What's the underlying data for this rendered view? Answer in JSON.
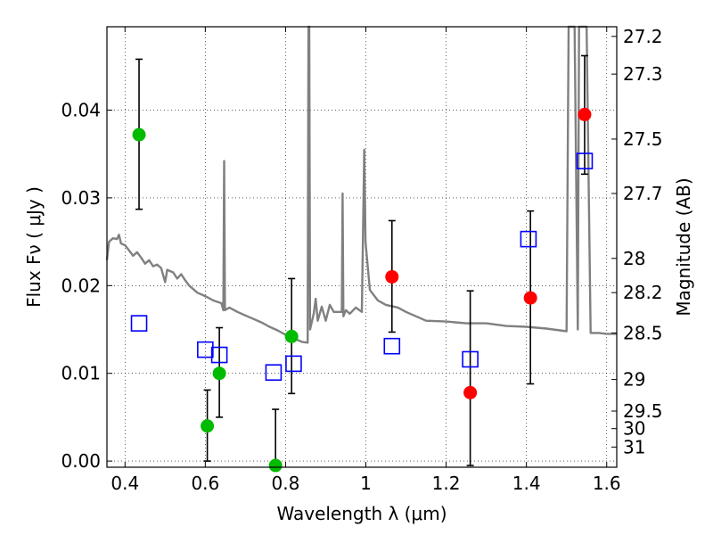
{
  "chart_data": {
    "type": "scatter",
    "title": "",
    "xlabel": "Wavelength  λ (μm)",
    "ylabel": "Flux  Fν  ( μJy )",
    "y2label": "Magnitude (AB)",
    "xlim": [
      0.355,
      1.625
    ],
    "ylim": [
      -0.0007,
      0.0495
    ],
    "grid": true,
    "grid_style": "dotted",
    "xticks": [
      0.4,
      0.6,
      0.8,
      1.0,
      1.2,
      1.4,
      1.6
    ],
    "xtick_labels": [
      "0.4",
      "0.6",
      "0.8",
      "1",
      "1.2",
      "1.4",
      "1.6"
    ],
    "yticks": [
      0.0,
      0.01,
      0.02,
      0.03,
      0.04
    ],
    "ytick_labels": [
      "0.00",
      "0.01",
      "0.02",
      "0.03",
      "0.04"
    ],
    "y2ticks": [
      {
        "label": "27.2",
        "flux": 0.0484
      },
      {
        "label": "27.3",
        "flux": 0.0441
      },
      {
        "label": "27.5",
        "flux": 0.0367
      },
      {
        "label": "27.7",
        "flux": 0.0305
      },
      {
        "label": "28",
        "flux": 0.0231
      },
      {
        "label": "28.2",
        "flux": 0.0192
      },
      {
        "label": "28.5",
        "flux": 0.0146
      },
      {
        "label": "29",
        "flux": 0.0093
      },
      {
        "label": "29.5",
        "flux": 0.0057
      },
      {
        "label": "30",
        "flux": 0.0037
      },
      {
        "label": "31",
        "flux": 0.0016
      }
    ],
    "colors": {
      "model": "#808080",
      "green": "#00bb00",
      "red": "#ff0000",
      "blue": "#0000ff",
      "errorbar": "#000000"
    },
    "series": [
      {
        "marker": "green-circle",
        "points": [
          {
            "x": 0.435,
            "y": 0.0372,
            "err_lo": 0.0287,
            "err_hi": 0.0458
          },
          {
            "x": 0.605,
            "y": 0.004,
            "err_lo": 0.0,
            "err_hi": 0.0081
          },
          {
            "x": 0.635,
            "y": 0.01,
            "err_lo": 0.005,
            "err_hi": 0.0152
          },
          {
            "x": 0.775,
            "y": -0.0005,
            "err_lo": -0.0005,
            "err_hi": 0.0059
          },
          {
            "x": 0.815,
            "y": 0.0142,
            "err_lo": 0.0077,
            "err_hi": 0.0208
          }
        ]
      },
      {
        "marker": "red-circle",
        "points": [
          {
            "x": 1.065,
            "y": 0.021,
            "err_lo": 0.0147,
            "err_hi": 0.0274
          },
          {
            "x": 1.26,
            "y": 0.0078,
            "err_lo": -0.0005,
            "err_hi": 0.0194
          },
          {
            "x": 1.41,
            "y": 0.0186,
            "err_lo": 0.0088,
            "err_hi": 0.0285
          },
          {
            "x": 1.545,
            "y": 0.0395,
            "err_lo": 0.0327,
            "err_hi": 0.0462
          }
        ]
      },
      {
        "marker": "blue-square",
        "points": [
          {
            "x": 0.435,
            "y": 0.0157
          },
          {
            "x": 0.6,
            "y": 0.0127
          },
          {
            "x": 0.635,
            "y": 0.0121
          },
          {
            "x": 0.77,
            "y": 0.0101
          },
          {
            "x": 0.82,
            "y": 0.0111
          },
          {
            "x": 1.065,
            "y": 0.0131
          },
          {
            "x": 1.26,
            "y": 0.0116
          },
          {
            "x": 1.405,
            "y": 0.0253
          },
          {
            "x": 1.545,
            "y": 0.0342
          }
        ]
      }
    ],
    "model_spectrum": [
      [
        0.355,
        0.0229
      ],
      [
        0.36,
        0.025
      ],
      [
        0.37,
        0.0254
      ],
      [
        0.38,
        0.0253
      ],
      [
        0.385,
        0.0258
      ],
      [
        0.39,
        0.0248
      ],
      [
        0.4,
        0.0246
      ],
      [
        0.41,
        0.024
      ],
      [
        0.42,
        0.0234
      ],
      [
        0.43,
        0.0238
      ],
      [
        0.44,
        0.0232
      ],
      [
        0.45,
        0.0225
      ],
      [
        0.46,
        0.0229
      ],
      [
        0.47,
        0.0222
      ],
      [
        0.48,
        0.0224
      ],
      [
        0.49,
        0.022
      ],
      [
        0.5,
        0.0204
      ],
      [
        0.505,
        0.0218
      ],
      [
        0.52,
        0.0215
      ],
      [
        0.53,
        0.0208
      ],
      [
        0.54,
        0.0213
      ],
      [
        0.55,
        0.0206
      ],
      [
        0.56,
        0.02
      ],
      [
        0.57,
        0.0196
      ],
      [
        0.58,
        0.0192
      ],
      [
        0.6,
        0.0188
      ],
      [
        0.62,
        0.0183
      ],
      [
        0.64,
        0.018
      ],
      [
        0.645,
        0.0172
      ],
      [
        0.647,
        0.0342
      ],
      [
        0.649,
        0.0172
      ],
      [
        0.66,
        0.0175
      ],
      [
        0.68,
        0.017
      ],
      [
        0.7,
        0.0166
      ],
      [
        0.72,
        0.0162
      ],
      [
        0.74,
        0.0158
      ],
      [
        0.76,
        0.0153
      ],
      [
        0.78,
        0.0149
      ],
      [
        0.8,
        0.0144
      ],
      [
        0.82,
        0.014
      ],
      [
        0.84,
        0.0136
      ],
      [
        0.855,
        0.0135
      ],
      [
        0.857,
        0.05
      ],
      [
        0.859,
        0.05
      ],
      [
        0.861,
        0.015
      ],
      [
        0.87,
        0.0168
      ],
      [
        0.875,
        0.0185
      ],
      [
        0.88,
        0.016
      ],
      [
        0.89,
        0.0176
      ],
      [
        0.9,
        0.016
      ],
      [
        0.91,
        0.0178
      ],
      [
        0.92,
        0.017
      ],
      [
        0.94,
        0.017
      ],
      [
        0.942,
        0.0305
      ],
      [
        0.944,
        0.0165
      ],
      [
        0.95,
        0.0172
      ],
      [
        0.96,
        0.0168
      ],
      [
        0.975,
        0.0175
      ],
      [
        0.99,
        0.017
      ],
      [
        0.996,
        0.0355
      ],
      [
        0.999,
        0.025
      ],
      [
        1.01,
        0.0195
      ],
      [
        1.03,
        0.0183
      ],
      [
        1.05,
        0.0178
      ],
      [
        1.08,
        0.0175
      ],
      [
        1.1,
        0.017
      ],
      [
        1.15,
        0.016
      ],
      [
        1.2,
        0.0159
      ],
      [
        1.25,
        0.0157
      ],
      [
        1.3,
        0.0157
      ],
      [
        1.35,
        0.0154
      ],
      [
        1.4,
        0.0153
      ],
      [
        1.45,
        0.0151
      ],
      [
        1.5,
        0.0148
      ],
      [
        1.505,
        0.05
      ],
      [
        1.52,
        0.05
      ],
      [
        1.528,
        0.015
      ],
      [
        1.531,
        0.05
      ],
      [
        1.545,
        0.05
      ],
      [
        1.55,
        0.05
      ],
      [
        1.56,
        0.0146
      ],
      [
        1.58,
        0.0146
      ],
      [
        1.6,
        0.0145
      ],
      [
        1.625,
        0.0145
      ]
    ]
  }
}
